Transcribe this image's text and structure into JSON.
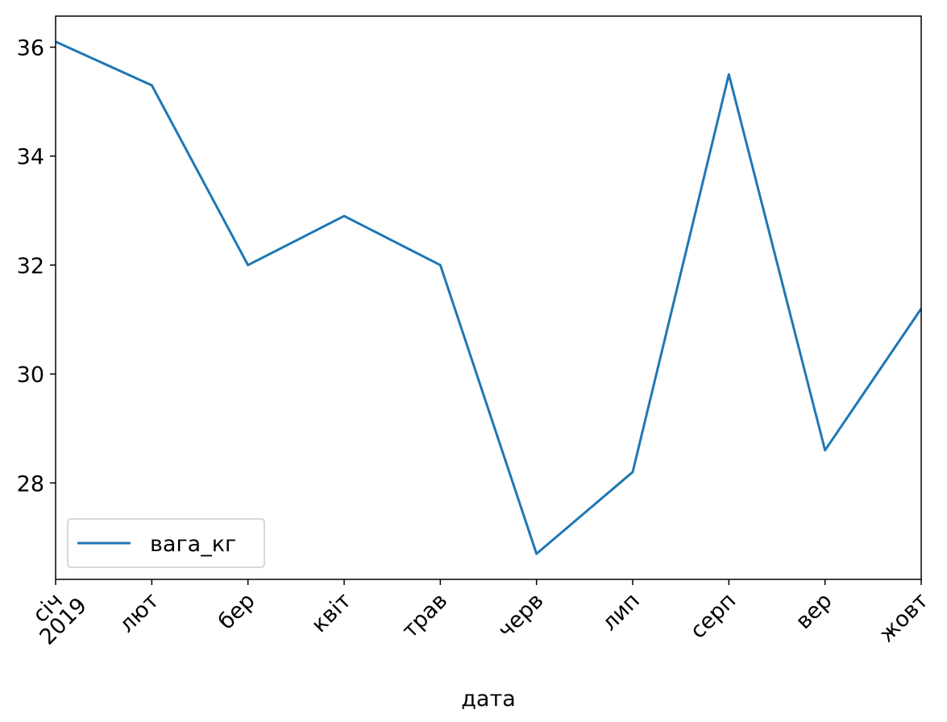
{
  "chart_data": {
    "type": "line",
    "xlabel": "дата",
    "categories": [
      "січ",
      "лют",
      "бер",
      "квіт",
      "трав",
      "черв",
      "лип",
      "серп",
      "вер",
      "жовт"
    ],
    "x_year_label": "2019",
    "series": [
      {
        "name": "вага_кг",
        "color": "#1f77b4",
        "values": [
          36.1,
          35.3,
          32.0,
          32.9,
          32.0,
          26.7,
          28.2,
          35.5,
          28.6,
          31.2
        ]
      }
    ],
    "ylim": [
      26.23,
      36.57
    ],
    "yticks": [
      28,
      30,
      32,
      34,
      36
    ],
    "grid": false,
    "legend": "lower left"
  }
}
